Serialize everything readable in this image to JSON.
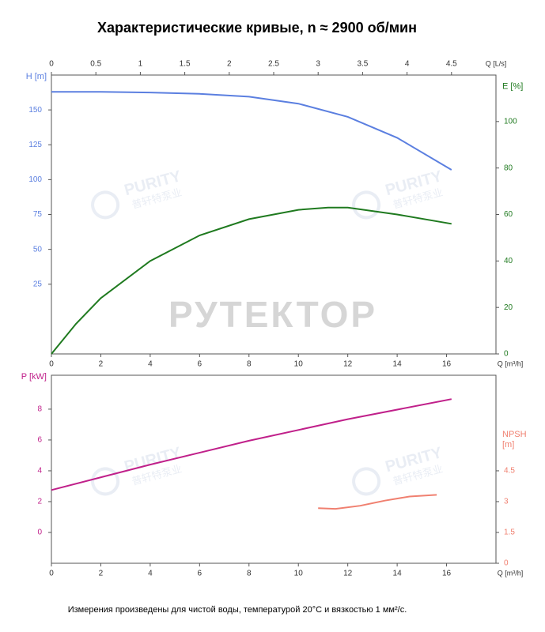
{
  "title": "Характеристические кривые, n ≈ 2900 об/мин",
  "footnote": "Измерения произведены для чистой воды, температурой 20°C и вязкостью 1 мм²/с.",
  "watermark": "РУТЕКТОР",
  "logo_text": "PURITY",
  "logo_subtext": "普轩特泵业",
  "chart_data": [
    {
      "type": "line",
      "xlabel": "Q [m³/h]",
      "x2label": "Q [L/s]",
      "ylabel": "H [m]",
      "y2label": [
        "E [%]"
      ],
      "xlim": [
        0,
        18
      ],
      "xticks": [
        0,
        2,
        4,
        6,
        8,
        10,
        12,
        14,
        16
      ],
      "x2lim": [
        0,
        5
      ],
      "x2ticks": [
        0,
        0.5,
        1,
        1.5,
        2,
        2.5,
        3,
        3.5,
        4,
        4.5
      ],
      "ylim": [
        -25,
        175
      ],
      "yticks": [
        25,
        50,
        75,
        100,
        125,
        150
      ],
      "y2lim": [
        0,
        120
      ],
      "y2ticks": [
        0,
        20,
        40,
        60,
        80,
        100
      ],
      "series": [
        {
          "name": "H",
          "color": "#5b7fe0",
          "axis": "y",
          "x": [
            0,
            2,
            4,
            6,
            8,
            10,
            12,
            14,
            16.2
          ],
          "values": [
            163,
            163,
            162.5,
            161.5,
            159.5,
            154.5,
            145,
            130,
            107
          ]
        },
        {
          "name": "E",
          "color": "#1f7a1f",
          "axis": "y2",
          "x": [
            0,
            1,
            2,
            4,
            6,
            8,
            10,
            11.2,
            12,
            14,
            16.2
          ],
          "values": [
            0,
            13,
            24,
            40,
            51,
            58,
            62,
            63,
            63,
            60,
            56
          ]
        }
      ]
    },
    {
      "type": "line",
      "xlabel": "Q [m³/h]",
      "ylabel": "P [kW]",
      "y2label": [
        "NPSH",
        "[m]"
      ],
      "xlim": [
        0,
        18
      ],
      "xticks": [
        0,
        2,
        4,
        6,
        8,
        10,
        12,
        14,
        16
      ],
      "ylim": [
        -2,
        10.2
      ],
      "yticks": [
        0,
        2,
        4,
        6,
        8
      ],
      "y2lim": [
        0,
        9.15
      ],
      "y2ticks": [
        0,
        1.5,
        3,
        4.5
      ],
      "series": [
        {
          "name": "P",
          "color": "#c0208a",
          "axis": "y",
          "x": [
            0,
            4,
            8,
            12,
            16.2
          ],
          "values": [
            2.75,
            4.4,
            5.95,
            7.35,
            8.65
          ]
        },
        {
          "name": "NPSH",
          "color": "#f08070",
          "axis": "y2",
          "x": [
            10.8,
            11.5,
            12.5,
            13.5,
            14.5,
            15.6
          ],
          "values": [
            2.68,
            2.65,
            2.8,
            3.05,
            3.25,
            3.33
          ]
        }
      ]
    }
  ]
}
